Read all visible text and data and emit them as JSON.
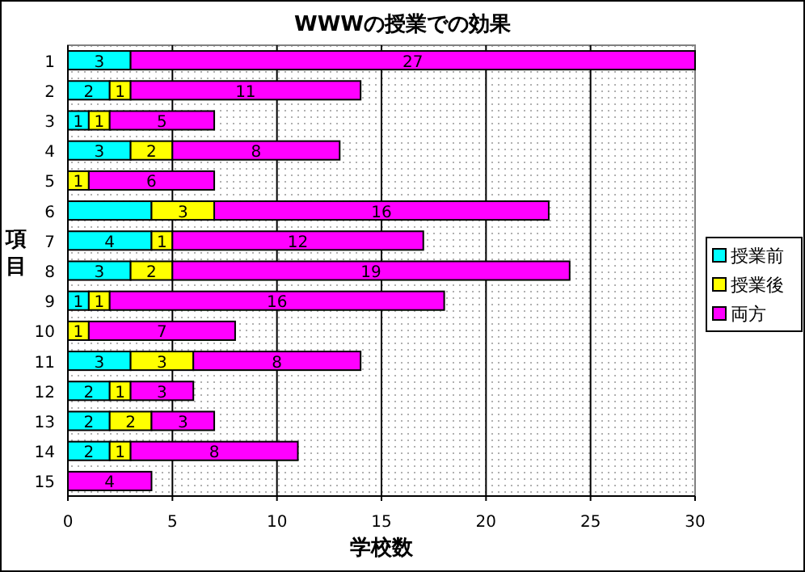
{
  "chart_data": {
    "type": "bar",
    "orientation": "horizontal",
    "stacked": true,
    "title": "WWWの授業での効果",
    "xlabel": "学校数",
    "ylabel": "項目",
    "categories": [
      "1",
      "2",
      "3",
      "4",
      "5",
      "6",
      "7",
      "8",
      "9",
      "10",
      "11",
      "12",
      "13",
      "14",
      "15"
    ],
    "series": [
      {
        "name": "授業前",
        "color": "#00ffff",
        "values": [
          3,
          2,
          1,
          3,
          null,
          4,
          4,
          3,
          1,
          null,
          3,
          2,
          2,
          2,
          null
        ],
        "value_labels": [
          "3",
          "2",
          "1",
          "3",
          null,
          null,
          "4",
          "3",
          "1",
          null,
          "3",
          "2",
          "2",
          "2",
          null
        ]
      },
      {
        "name": "授業後",
        "color": "#ffff00",
        "values": [
          null,
          1,
          1,
          2,
          1,
          3,
          1,
          2,
          1,
          1,
          3,
          1,
          2,
          1,
          null
        ],
        "value_labels": [
          null,
          "1",
          "1",
          "2",
          "1",
          "3",
          "1",
          "2",
          "1",
          "1",
          "3",
          "1",
          "2",
          "1",
          null
        ]
      },
      {
        "name": "両方",
        "color": "#ff00ff",
        "values": [
          27,
          11,
          5,
          8,
          6,
          16,
          12,
          19,
          16,
          7,
          8,
          3,
          3,
          8,
          4
        ],
        "value_labels": [
          "27",
          "11",
          "5",
          "8",
          "6",
          "16",
          "12",
          "19",
          "16",
          "7",
          "8",
          "3",
          "3",
          "8",
          "4"
        ]
      }
    ],
    "xlim": [
      0,
      30
    ],
    "xticks": [
      0,
      5,
      10,
      15,
      20,
      25,
      30
    ],
    "grid": "x",
    "legend": "right"
  }
}
